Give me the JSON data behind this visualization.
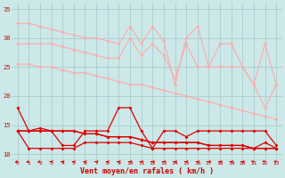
{
  "x": [
    0,
    1,
    2,
    3,
    4,
    5,
    6,
    7,
    8,
    9,
    10,
    11,
    12,
    13,
    14,
    15,
    16,
    17,
    18,
    19,
    20,
    21,
    22,
    23
  ],
  "line1": [
    32.5,
    32.5,
    32,
    31.5,
    31,
    30.5,
    30,
    30,
    29.5,
    29,
    32,
    29,
    32,
    29.5,
    22,
    30,
    32,
    25,
    29,
    29,
    25,
    22,
    18,
    22
  ],
  "line2": [
    29,
    29,
    29,
    29,
    28.5,
    28,
    27.5,
    27,
    26.5,
    26.5,
    30,
    27,
    29,
    27,
    23,
    29,
    25,
    25,
    25,
    25,
    25,
    22,
    29,
    22
  ],
  "line3": [
    25.5,
    25.5,
    25,
    25,
    24.5,
    24,
    24,
    23.5,
    23,
    22.5,
    22,
    22,
    21.5,
    21,
    20.5,
    20,
    19.5,
    19,
    18.5,
    18,
    17.5,
    17,
    16.5,
    16
  ],
  "line4": [
    18,
    14,
    14,
    14,
    11.5,
    11.5,
    14,
    14,
    14,
    18,
    18,
    14,
    11,
    14,
    14,
    13,
    14,
    14,
    14,
    14,
    14,
    14,
    14,
    11.5
  ],
  "line5": [
    14,
    14,
    14.5,
    14,
    14,
    14,
    13.5,
    13.5,
    13,
    13,
    13,
    12.5,
    12,
    12,
    12,
    12,
    12,
    11.5,
    11.5,
    11.5,
    11.5,
    11,
    11,
    11
  ],
  "line6": [
    14,
    11,
    11,
    11,
    11,
    11,
    12,
    12,
    12,
    12,
    12,
    11.5,
    11,
    11,
    11,
    11,
    11,
    11,
    11,
    11,
    11,
    11,
    12,
    11
  ],
  "line7": [
    14,
    14,
    14,
    14,
    14,
    14,
    13.5,
    13.5,
    13,
    13,
    13,
    12.5,
    12,
    12,
    12,
    12,
    12,
    11.5,
    11.5,
    11.5,
    11.5,
    11,
    11,
    11
  ],
  "bg_color": "#cce8e8",
  "grid_color": "#aacece",
  "line1_color": "#ffaaaa",
  "line2_color": "#ffaaaa",
  "line3_color": "#ffaaaa",
  "line4_color": "#dd0000",
  "line5_color": "#dd0000",
  "line6_color": "#dd0000",
  "line7_color": "#dd0000",
  "xlabel": "Vent moyen/en rafales ( km/h )",
  "xlabel_color": "#cc0000",
  "tick_color": "#cc0000",
  "ylim": [
    9,
    36
  ],
  "yticks": [
    10,
    15,
    20,
    25,
    30,
    35
  ],
  "xlim": [
    -0.5,
    23.5
  ],
  "arrow_color": "#dd0000",
  "arrow_angles": [
    225,
    225,
    225,
    270,
    270,
    270,
    270,
    270,
    270,
    270,
    270,
    270,
    270,
    270,
    270,
    270,
    270,
    270,
    270,
    270,
    270,
    315,
    315,
    315
  ]
}
